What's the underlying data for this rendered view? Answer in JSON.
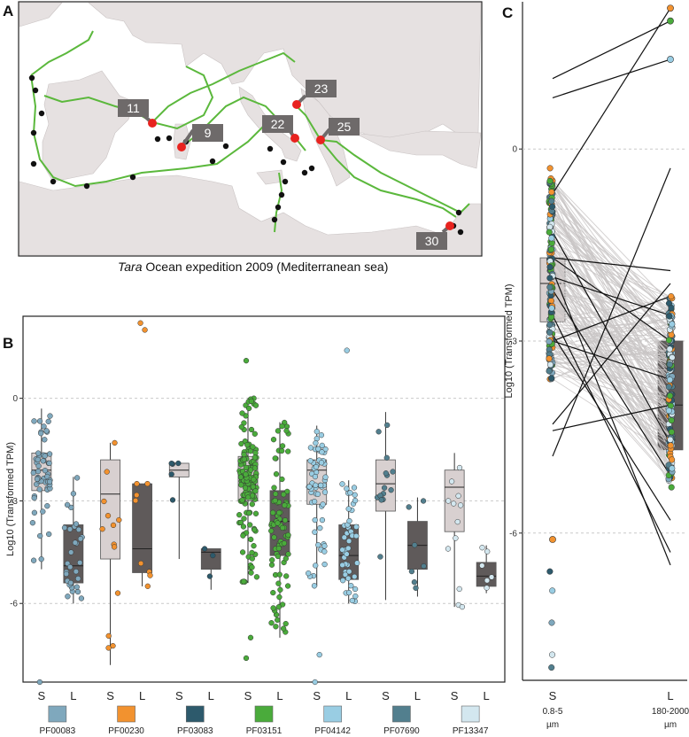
{
  "panels": {
    "a": "A",
    "b": "B",
    "c": "C"
  },
  "map": {
    "caption_italic": "Tara",
    "caption_rest": " Ocean expedition 2009 (Mediterranean sea)",
    "stations": [
      "11",
      "9",
      "22",
      "23",
      "25",
      "30"
    ],
    "route_color": "#5bb83c",
    "sampling_dot_color": "#111111",
    "highlight_color": "#e8231f",
    "land_color": "#e6e1e1",
    "sea_color": "#ffffff",
    "label_bg": "#6e6a6a"
  },
  "chart_data": [
    {
      "type": "box",
      "panel": "B",
      "ylabel": "Log10 (Transformed TPM)",
      "yticks": [
        0,
        -3,
        -6
      ],
      "ylim": [
        -8.3,
        2.4
      ],
      "grid": true,
      "group_labels": [
        "S",
        "L"
      ],
      "legend": [
        "PF00083",
        "PF00230",
        "PF03083",
        "PF03151",
        "PF04142",
        "PF07690",
        "PF13347"
      ],
      "colors": {
        "PF00083": "#7fa8bd",
        "PF00230": "#f2922f",
        "PF03083": "#2d5a6c",
        "PF03151": "#4aab3b",
        "PF04142": "#99cde3",
        "PF07690": "#527f8e",
        "PF13347": "#d3e7ef"
      },
      "box_colors": {
        "S": "#d8d0d0",
        "L": "#5f5a5a"
      },
      "series": [
        {
          "family": "PF00083",
          "S": {
            "q1": -2.7,
            "median": -2.1,
            "q3": -1.6,
            "whislo": -5.0,
            "whishi": -0.3,
            "n": 55
          },
          "L": {
            "q1": -5.4,
            "median": -4.9,
            "q3": -3.7,
            "whislo": -6.0,
            "whishi": -2.3,
            "n": 30
          }
        },
        {
          "family": "PF00230",
          "S": {
            "q1": -4.7,
            "median": -2.8,
            "q3": -1.8,
            "whislo": -7.8,
            "whishi": -1.3,
            "n": 12
          },
          "L": {
            "q1": -5.1,
            "median": -4.4,
            "q3": -2.5,
            "whislo": -5.5,
            "whishi": -2.5,
            "n": 8
          }
        },
        {
          "family": "PF03083",
          "S": {
            "q1": -2.3,
            "median": -2.1,
            "q3": -1.9,
            "whislo": -4.7,
            "whishi": -1.9,
            "n": 5
          },
          "L": {
            "q1": -5.0,
            "median": -4.5,
            "q3": -4.4,
            "whislo": -5.6,
            "whishi": -4.4,
            "n": 3
          }
        },
        {
          "family": "PF03151",
          "S": {
            "q1": -3.0,
            "median": -2.3,
            "q3": -1.7,
            "whislo": -5.4,
            "whishi": 0.0,
            "n": 140
          },
          "L": {
            "q1": -4.6,
            "median": -3.6,
            "q3": -2.7,
            "whislo": -7.0,
            "whishi": -0.7,
            "n": 80
          }
        },
        {
          "family": "PF04142",
          "S": {
            "q1": -3.1,
            "median": -2.1,
            "q3": -1.8,
            "whislo": -5.5,
            "whishi": -0.8,
            "n": 60
          },
          "L": {
            "q1": -5.3,
            "median": -4.6,
            "q3": -3.7,
            "whislo": -6.0,
            "whishi": -2.4,
            "n": 45
          }
        },
        {
          "family": "PF07690",
          "S": {
            "q1": -3.3,
            "median": -2.5,
            "q3": -1.8,
            "whislo": -5.9,
            "whishi": -0.4,
            "n": 14
          },
          "L": {
            "q1": -5.0,
            "median": -4.3,
            "q3": -3.6,
            "whislo": -5.8,
            "whishi": -2.9,
            "n": 7
          }
        },
        {
          "family": "PF13347",
          "S": {
            "q1": -3.9,
            "median": -2.6,
            "q3": -2.1,
            "whislo": -6.1,
            "whishi": -1.6,
            "n": 12
          },
          "L": {
            "q1": -5.5,
            "median": -5.2,
            "q3": -4.8,
            "whislo": -5.7,
            "whishi": -4.3,
            "n": 6
          }
        }
      ],
      "outliers": [
        {
          "family": "PF00083",
          "group": "S",
          "values": [
            -8.3
          ]
        },
        {
          "family": "PF00230",
          "group": "S",
          "values": [
            -7.3
          ]
        },
        {
          "family": "PF00230",
          "group": "L",
          "values": [
            2.2,
            2.0
          ]
        },
        {
          "family": "PF03151",
          "group": "S",
          "values": [
            1.1,
            -7.0,
            -7.6
          ]
        },
        {
          "family": "PF04142",
          "group": "S",
          "values": [
            -8.3,
            -7.5
          ]
        },
        {
          "family": "PF04142",
          "group": "L",
          "values": [
            1.4
          ]
        }
      ]
    },
    {
      "type": "box",
      "panel": "C",
      "ylabel": "Log10 (Transformed TPM)",
      "yticks": [
        0,
        -3,
        -6
      ],
      "ylim": [
        -8.3,
        2.3
      ],
      "grid": true,
      "categories": [
        {
          "name": "S",
          "size": "0.8-5",
          "unit": "µm"
        },
        {
          "name": "L",
          "size": "180-2000",
          "unit": "µm"
        }
      ],
      "S": {
        "q1": -2.7,
        "median": -2.1,
        "q3": -1.7,
        "whislo": -7.0,
        "whishi": 1.1
      },
      "L": {
        "q1": -4.7,
        "median": -4.0,
        "q3": -3.0,
        "whislo": -5.7,
        "whishi": 2.2
      },
      "dark_lines": [
        [
          2.2,
          -0.7
        ],
        [
          2.0,
          1.1
        ],
        [
          1.4,
          0.8
        ],
        [
          -0.3,
          -4.8
        ],
        [
          -1.9,
          -1.7
        ],
        [
          -2.1,
          -4.3
        ],
        [
          -2.3,
          -3.0
        ],
        [
          -2.6,
          -2.0
        ],
        [
          -3.0,
          -1.7
        ],
        [
          -3.6,
          -3.0
        ],
        [
          -4.0,
          -4.4
        ],
        [
          -4.6,
          -1.3
        ],
        [
          -5.1,
          -2.2
        ],
        [
          -5.8,
          -2.9
        ],
        [
          -6.3,
          -2.6
        ],
        [
          -6.5,
          -1.9
        ]
      ],
      "highlight_points": [
        {
          "group": "S",
          "value": -6.1,
          "family": "PF00230"
        },
        {
          "group": "L",
          "value": 2.2,
          "family": "PF00230"
        },
        {
          "group": "L",
          "value": 2.0,
          "family": "PF03151"
        },
        {
          "group": "L",
          "value": 1.4,
          "family": "PF04142"
        }
      ]
    }
  ]
}
